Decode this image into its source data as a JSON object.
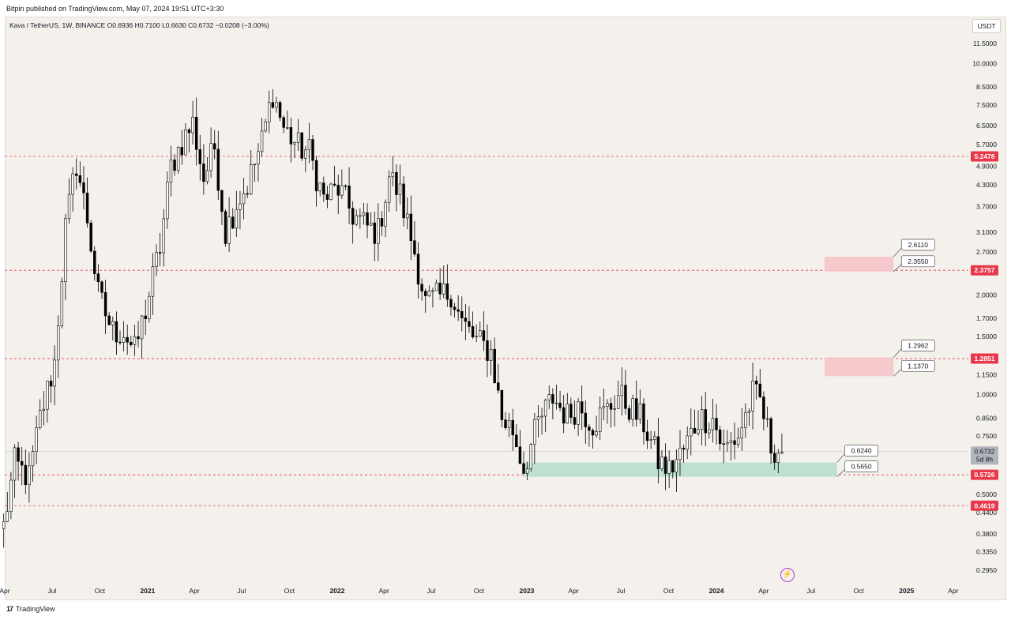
{
  "header": {
    "publish_text": "Bitpin published on TradingView.com, May 07, 2024 19:51 UTC+3:30",
    "symbol_text": "Kava / TetherUS, 1W, BINANCE  O0.6936  H0.7100  L0.6630  C0.6732  −0.0208 (−3.00%)",
    "currency": "USDT"
  },
  "footer": {
    "logo": "17",
    "brand": "TradingView"
  },
  "colors": {
    "background": "#f4f1ec",
    "bullish_fill": "#ffffff",
    "bearish_fill": "#000000",
    "level_line": "#e8394b",
    "resistance_zone": "#f6c5c9",
    "support_zone": "#b8dfcd",
    "price_badge": "#b2b5be",
    "lightning": "#b23bd6"
  },
  "lightning_icon": "lightning-icon",
  "chart_data": {
    "type": "candlestick",
    "y_scale": "log",
    "ylim": [
      0.27,
      13.8
    ],
    "xlim": [
      "2020-04-01",
      "2025-04-30"
    ],
    "y_ticks": [
      "11.5000",
      "10.0000",
      "8.5000",
      "7.5000",
      "6.5000",
      "5.7000",
      "4.9000",
      "4.3000",
      "3.7000",
      "3.1000",
      "2.7000",
      "2.0000",
      "1.7000",
      "1.5000",
      "1.1500",
      "1.0000",
      "0.8500",
      "0.7500",
      "0.5000",
      "0.4400",
      "0.3800",
      "0.3350",
      "0.2950"
    ],
    "x_ticks": [
      {
        "label": "Apr",
        "date": "2020-04-01",
        "bold": false
      },
      {
        "label": "Jul",
        "date": "2020-07-01",
        "bold": false
      },
      {
        "label": "Oct",
        "date": "2020-10-01",
        "bold": false
      },
      {
        "label": "2021",
        "date": "2021-01-01",
        "bold": true
      },
      {
        "label": "Apr",
        "date": "2021-04-01",
        "bold": false
      },
      {
        "label": "Jul",
        "date": "2021-07-01",
        "bold": false
      },
      {
        "label": "Oct",
        "date": "2021-10-01",
        "bold": false
      },
      {
        "label": "2022",
        "date": "2022-01-01",
        "bold": true
      },
      {
        "label": "Apr",
        "date": "2022-04-01",
        "bold": false
      },
      {
        "label": "Jul",
        "date": "2022-07-01",
        "bold": false
      },
      {
        "label": "Oct",
        "date": "2022-10-01",
        "bold": false
      },
      {
        "label": "2023",
        "date": "2023-01-01",
        "bold": true
      },
      {
        "label": "Apr",
        "date": "2023-04-01",
        "bold": false
      },
      {
        "label": "Jul",
        "date": "2023-07-01",
        "bold": false
      },
      {
        "label": "Oct",
        "date": "2023-10-01",
        "bold": false
      },
      {
        "label": "2024",
        "date": "2024-01-01",
        "bold": true
      },
      {
        "label": "Apr",
        "date": "2024-04-01",
        "bold": false
      },
      {
        "label": "Jul",
        "date": "2024-07-01",
        "bold": false
      },
      {
        "label": "Oct",
        "date": "2024-10-01",
        "bold": false
      },
      {
        "label": "2025",
        "date": "2025-01-01",
        "bold": true
      },
      {
        "label": "Apr",
        "date": "2025-04-01",
        "bold": false
      }
    ],
    "anchors": [
      [
        "2020-03-30",
        0.4
      ],
      [
        "2020-04-20",
        0.62
      ],
      [
        "2020-05-18",
        0.56
      ],
      [
        "2020-06-08",
        0.85
      ],
      [
        "2020-07-06",
        1.25
      ],
      [
        "2020-07-27",
        3.2
      ],
      [
        "2020-08-17",
        5.0
      ],
      [
        "2020-09-07",
        3.4
      ],
      [
        "2020-09-28",
        2.0
      ],
      [
        "2020-10-26",
        1.55
      ],
      [
        "2020-11-16",
        1.55
      ],
      [
        "2020-12-07",
        1.35
      ],
      [
        "2020-12-28",
        1.8
      ],
      [
        "2021-01-25",
        2.8
      ],
      [
        "2021-02-15",
        4.9
      ],
      [
        "2021-03-08",
        5.8
      ],
      [
        "2021-03-29",
        6.6
      ],
      [
        "2021-04-19",
        4.5
      ],
      [
        "2021-05-10",
        5.6
      ],
      [
        "2021-05-31",
        3.1
      ],
      [
        "2021-06-21",
        3.8
      ],
      [
        "2021-07-12",
        4.3
      ],
      [
        "2021-08-09",
        5.8
      ],
      [
        "2021-08-30",
        8.2
      ],
      [
        "2021-09-20",
        6.4
      ],
      [
        "2021-10-18",
        5.6
      ],
      [
        "2021-11-08",
        5.4
      ],
      [
        "2021-12-06",
        3.9
      ],
      [
        "2022-01-03",
        4.2
      ],
      [
        "2022-01-31",
        3.5
      ],
      [
        "2022-02-28",
        3.2
      ],
      [
        "2022-03-21",
        3.1
      ],
      [
        "2022-04-11",
        4.6
      ],
      [
        "2022-05-02",
        4.0
      ],
      [
        "2022-05-30",
        2.7
      ],
      [
        "2022-06-20",
        1.9
      ],
      [
        "2022-07-11",
        1.95
      ],
      [
        "2022-08-08",
        2.05
      ],
      [
        "2022-08-29",
        1.65
      ],
      [
        "2022-09-26",
        1.45
      ],
      [
        "2022-10-24",
        1.35
      ],
      [
        "2022-11-14",
        0.85
      ],
      [
        "2022-12-05",
        0.78
      ],
      [
        "2022-12-26",
        0.6
      ],
      [
        "2023-01-23",
        0.82
      ],
      [
        "2023-02-20",
        0.98
      ],
      [
        "2023-03-20",
        0.86
      ],
      [
        "2023-04-10",
        0.93
      ],
      [
        "2023-05-08",
        0.82
      ],
      [
        "2023-06-05",
        0.9
      ],
      [
        "2023-06-26",
        1.0
      ],
      [
        "2023-07-17",
        0.92
      ],
      [
        "2023-08-14",
        0.82
      ],
      [
        "2023-09-11",
        0.63
      ],
      [
        "2023-10-02",
        0.59
      ],
      [
        "2023-10-30",
        0.68
      ],
      [
        "2023-11-27",
        0.85
      ],
      [
        "2023-12-25",
        0.85
      ],
      [
        "2024-01-15",
        0.68
      ],
      [
        "2024-02-12",
        0.75
      ],
      [
        "2024-03-11",
        1.0
      ],
      [
        "2024-03-25",
        0.96
      ],
      [
        "2024-04-15",
        0.7
      ],
      [
        "2024-05-06",
        0.67
      ]
    ],
    "levels": [
      {
        "price": 5.2478,
        "label": "5.2478"
      },
      {
        "price": 2.3757,
        "label": "2.3757"
      },
      {
        "price": 1.2851,
        "label": "1.2851"
      },
      {
        "price": 0.5726,
        "label": "0.5726"
      },
      {
        "price": 0.4619,
        "label": "0.4619"
      }
    ],
    "current_price": {
      "price": 0.6732,
      "label": "0.6732",
      "countdown": "5d 8h"
    },
    "zones": [
      {
        "kind": "resistance",
        "top": 2.611,
        "bottom": 2.355,
        "start": "2024-07-27",
        "end": "2024-12-07",
        "top_label": "2.6110",
        "bottom_label": "2.3550"
      },
      {
        "kind": "resistance",
        "top": 1.2962,
        "bottom": 1.137,
        "start": "2024-07-27",
        "end": "2024-12-07",
        "top_label": "1.2962",
        "bottom_label": "1.1370"
      },
      {
        "kind": "support",
        "top": 0.624,
        "bottom": 0.565,
        "start": "2022-12-26",
        "end": "2024-08-20",
        "top_label": "0.6240",
        "bottom_label": "0.5650"
      }
    ]
  }
}
